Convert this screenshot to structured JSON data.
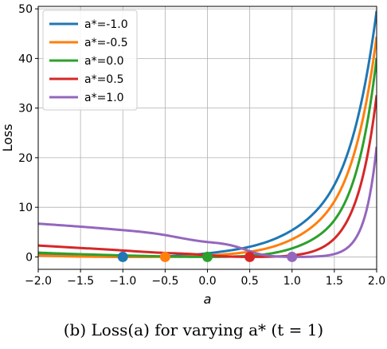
{
  "chart_data": {
    "type": "line",
    "xlabel": "a",
    "ylabel": "Loss",
    "xlim": [
      -2.0,
      2.0
    ],
    "ylim": [
      -2.5,
      50.5
    ],
    "xticks": [
      -2.0,
      -1.5,
      -1.0,
      -0.5,
      0.0,
      0.5,
      1.0,
      1.5,
      2.0
    ],
    "xtick_labels": [
      "−2.0",
      "−1.5",
      "−1.0",
      "−0.5",
      "0.0",
      "0.5",
      "1.0",
      "1.5",
      "2.0"
    ],
    "yticks": [
      0,
      10,
      20,
      30,
      40,
      50
    ],
    "ytick_labels": [
      "0",
      "10",
      "20",
      "30",
      "40",
      "50"
    ],
    "grid": true,
    "legend_position": "top-left",
    "x": [
      -2.0,
      -1.5,
      -1.0,
      -0.5,
      0.0,
      0.5,
      1.0,
      1.5,
      2.0
    ],
    "series": [
      {
        "name": "a*=-1.0",
        "a_star": -1.0,
        "color": "#1f77b4",
        "values": [
          0.72,
          0.23,
          0.0,
          0.12,
          0.72,
          2.05,
          5.39,
          14.5,
          49.6
        ]
      },
      {
        "name": "a*=-0.5",
        "a_star": -0.5,
        "color": "#ff7f0e",
        "values": [
          0.3,
          0.07,
          0.0,
          0.0,
          0.27,
          1.05,
          3.55,
          11.2,
          44.4
        ]
      },
      {
        "name": "a*=0.0",
        "a_star": 0.0,
        "color": "#2ca02c",
        "values": [
          0.86,
          0.55,
          0.3,
          0.1,
          0.0,
          0.23,
          1.72,
          7.39,
          40.1
        ]
      },
      {
        "name": "a*=0.5",
        "a_star": 0.5,
        "color": "#d62728",
        "values": [
          2.3,
          1.8,
          1.3,
          0.8,
          0.35,
          0.0,
          0.3,
          3.69,
          32.6
        ]
      },
      {
        "name": "a*=1.0",
        "a_star": 1.0,
        "color": "#9467bd",
        "values": [
          6.7,
          6.1,
          5.4,
          4.4,
          3.0,
          1.16,
          0.0,
          0.58,
          22.2
        ]
      }
    ],
    "minima_markers": [
      {
        "x": -1.0,
        "y": 0,
        "color": "#1f77b4"
      },
      {
        "x": -0.5,
        "y": 0,
        "color": "#ff7f0e"
      },
      {
        "x": 0.0,
        "y": 0,
        "color": "#2ca02c"
      },
      {
        "x": 0.5,
        "y": 0,
        "color": "#d62728"
      },
      {
        "x": 1.0,
        "y": 0,
        "color": "#9467bd"
      }
    ],
    "caption": "(b) Loss(a) for varying a* (t = 1)"
  }
}
